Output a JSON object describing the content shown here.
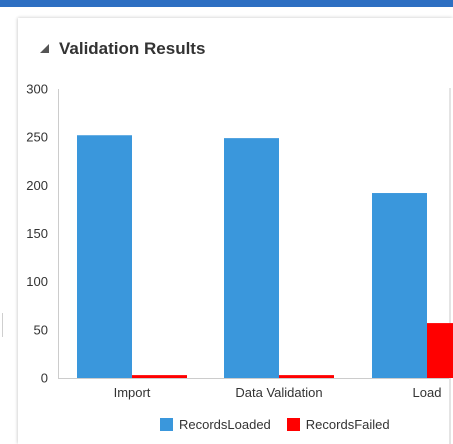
{
  "panel": {
    "title": "Validation Results"
  },
  "icons": {
    "collapse": "triangle-collapse-icon"
  },
  "colors": {
    "top_bar": "#2e6fc2",
    "records_loaded": "#3a97dc",
    "records_failed": "#ff0000",
    "axis_text": "#333333",
    "grid": "#e6e6e6"
  },
  "chart_data": {
    "type": "bar",
    "title": "",
    "xlabel": "",
    "ylabel": "",
    "categories": [
      "Import",
      "Data Validation",
      "Load"
    ],
    "series": [
      {
        "name": "RecordsLoaded",
        "values": [
          252,
          249,
          192
        ],
        "color": "#3a97dc"
      },
      {
        "name": "RecordsFailed",
        "values": [
          3,
          3,
          57
        ],
        "color": "#ff0000"
      }
    ],
    "ylim": [
      0,
      300
    ],
    "yticks": [
      0,
      50,
      100,
      150,
      200,
      250,
      300
    ],
    "grid": false,
    "legend": "bottom"
  }
}
